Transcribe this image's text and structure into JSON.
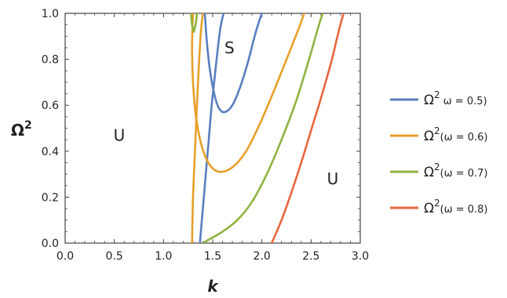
{
  "chart_data": {
    "type": "line",
    "xlabel": "k",
    "ylabel": "Ω",
    "ylabel_sup": "2",
    "xlim": [
      0.0,
      3.0
    ],
    "ylim": [
      0.0,
      1.0
    ],
    "x_ticks": [
      "0.0",
      "0.5",
      "1.0",
      "1.5",
      "2.0",
      "2.5",
      "3.0"
    ],
    "y_ticks": [
      "0.0",
      "0.2",
      "0.4",
      "0.6",
      "0.8",
      "1.0"
    ],
    "region_labels": [
      {
        "text": "U",
        "x": 0.55,
        "y": 0.47
      },
      {
        "text": "S",
        "x": 1.67,
        "y": 0.85
      },
      {
        "text": "U",
        "x": 2.72,
        "y": 0.28
      }
    ],
    "series": [
      {
        "name": "Ω2 ω = 0.5)",
        "legend": {
          "base": "Ω",
          "sup": "2",
          "rest": " ω = 0.5)"
        },
        "color": "#5a7fbf",
        "segments": [
          {
            "x": [
              1.37,
              1.4,
              1.43,
              1.46,
              1.49,
              1.52,
              1.55,
              1.58,
              1.61
            ],
            "y": [
              0.0,
              0.15,
              0.3,
              0.45,
              0.6,
              0.72,
              0.84,
              0.94,
              1.0
            ]
          },
          {
            "x": [
              1.42,
              1.44,
              1.47,
              1.51,
              1.56,
              1.62,
              1.7,
              1.78,
              1.86,
              1.92,
              1.96,
              2.0
            ],
            "y": [
              1.0,
              0.88,
              0.76,
              0.66,
              0.59,
              0.57,
              0.6,
              0.68,
              0.79,
              0.89,
              0.95,
              1.0
            ]
          }
        ]
      },
      {
        "name": "Ω2(ω = 0.6)",
        "legend": {
          "base": "Ω",
          "sup": "2",
          "rest": "(ω = 0.6)"
        },
        "color": "#e6a029",
        "segments": [
          {
            "x": [
              1.29,
              1.3,
              1.32,
              1.34,
              1.36,
              1.38,
              1.4
            ],
            "y": [
              0.0,
              0.2,
              0.4,
              0.6,
              0.78,
              0.92,
              1.0
            ]
          },
          {
            "x": [
              1.3,
              1.29,
              1.3,
              1.33,
              1.39,
              1.47,
              1.57,
              1.7,
              1.84,
              1.98,
              2.12,
              2.26,
              2.38,
              2.43
            ],
            "y": [
              1.0,
              0.85,
              0.7,
              0.55,
              0.42,
              0.34,
              0.31,
              0.33,
              0.4,
              0.52,
              0.66,
              0.81,
              0.94,
              1.0
            ]
          }
        ]
      },
      {
        "name": "Ω2(ω = 0.7)",
        "legend": {
          "base": "Ω",
          "sup": "2",
          "rest": "(ω = 0.7)"
        },
        "color": "#8fb341",
        "segments": [
          {
            "x": [
              1.28,
              1.29,
              1.31
            ],
            "y": [
              1.0,
              0.95,
              0.92
            ]
          },
          {
            "x": [
              1.31,
              1.33,
              1.34
            ],
            "y": [
              0.92,
              0.96,
              1.0
            ]
          },
          {
            "x": [
              1.4,
              1.48,
              1.6,
              1.75,
              1.9,
              2.05,
              2.2,
              2.35,
              2.48,
              2.58,
              2.62
            ],
            "y": [
              0.0,
              0.02,
              0.05,
              0.1,
              0.18,
              0.3,
              0.45,
              0.62,
              0.8,
              0.95,
              1.0
            ]
          }
        ]
      },
      {
        "name": "Ω2(ω = 0.8)",
        "legend": {
          "base": "Ω",
          "sup": "2",
          "rest": "(ω = 0.8)"
        },
        "color": "#e8663d",
        "segments": [
          {
            "x": [
              2.1,
              2.2,
              2.3,
              2.4,
              2.5,
              2.6,
              2.7,
              2.78,
              2.83
            ],
            "y": [
              0.0,
              0.1,
              0.22,
              0.35,
              0.49,
              0.63,
              0.78,
              0.92,
              1.0
            ]
          }
        ]
      }
    ]
  }
}
